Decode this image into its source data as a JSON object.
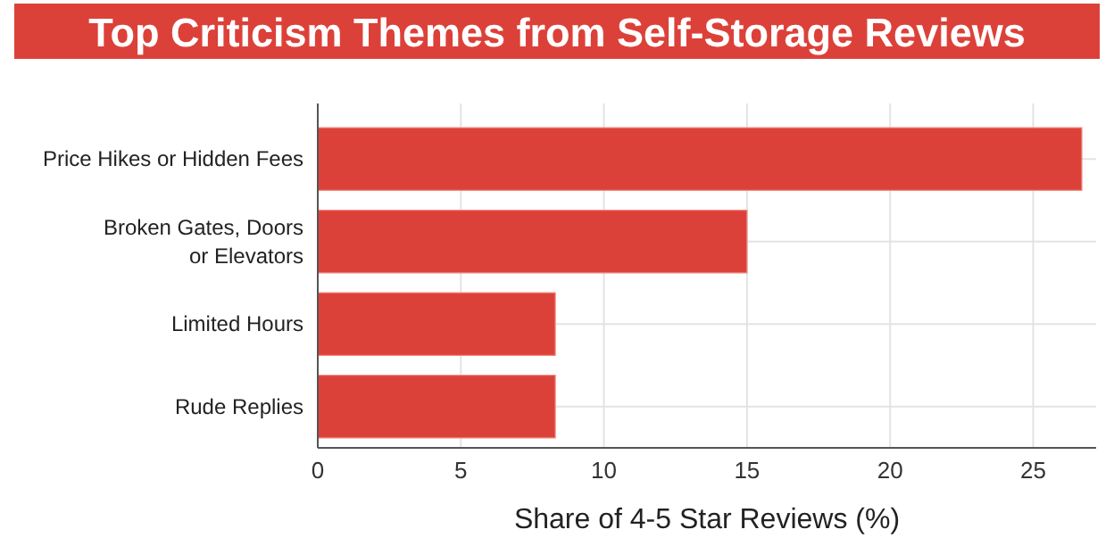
{
  "chart_data": {
    "type": "bar",
    "orientation": "horizontal",
    "title": "Top Criticism Themes from Self-Storage Reviews",
    "xlabel": "Share of 4-5 Star Reviews (%)",
    "categories": [
      "Price Hikes or Hidden Fees",
      "Broken Gates, Doors or Elevators",
      "Limited Hours",
      "Rude Replies"
    ],
    "values": [
      26.7,
      15,
      8.3,
      8.3
    ],
    "color": "#dc4139",
    "xlim": [
      0,
      27.2
    ],
    "xticks": [
      0,
      5,
      10,
      15,
      20,
      25
    ],
    "grid": true
  }
}
